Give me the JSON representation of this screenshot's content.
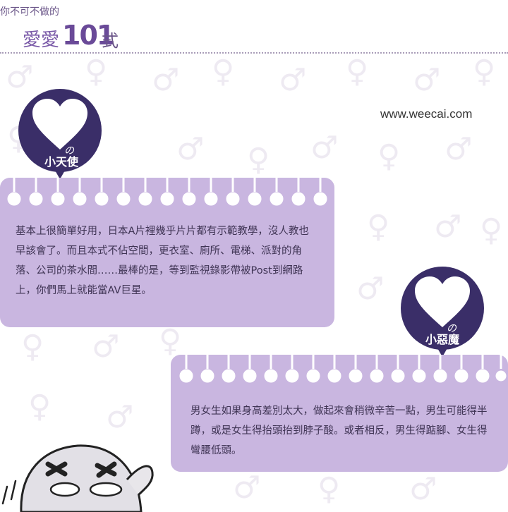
{
  "header": {
    "small_title": "你不可不做的",
    "main_title": "愛愛",
    "number": "101",
    "suffix": "式"
  },
  "website": "www.weecai.com",
  "angel": {
    "badge_mark": "の",
    "badge_label": "小天使"
  },
  "angel_card": {
    "text": "基本上很簡單好用，日本A片裡幾乎片片都有示範教學，沒人教也早該會了。而且本式不佔空間，更衣室、廁所、電梯、派對的角落、公司的茶水間……最棒的是，等到監視錄影帶被Post到網路上，你們馬上就能當AV巨星。"
  },
  "devil": {
    "badge_mark": "の",
    "badge_label": "小惡魔"
  },
  "devil_card": {
    "text": "男女生如果身高差別太大，做起來會稍微辛苦一點，男生可能得半蹲，或是女生得抬頭抬到脖子酸。或者相反，男生得踮腳、女生得彎腰低頭。"
  },
  "colors": {
    "card": "#c9b6e0",
    "badge": "#3a2e68",
    "text": "#3f3454",
    "accent": "#7a5aa8"
  }
}
